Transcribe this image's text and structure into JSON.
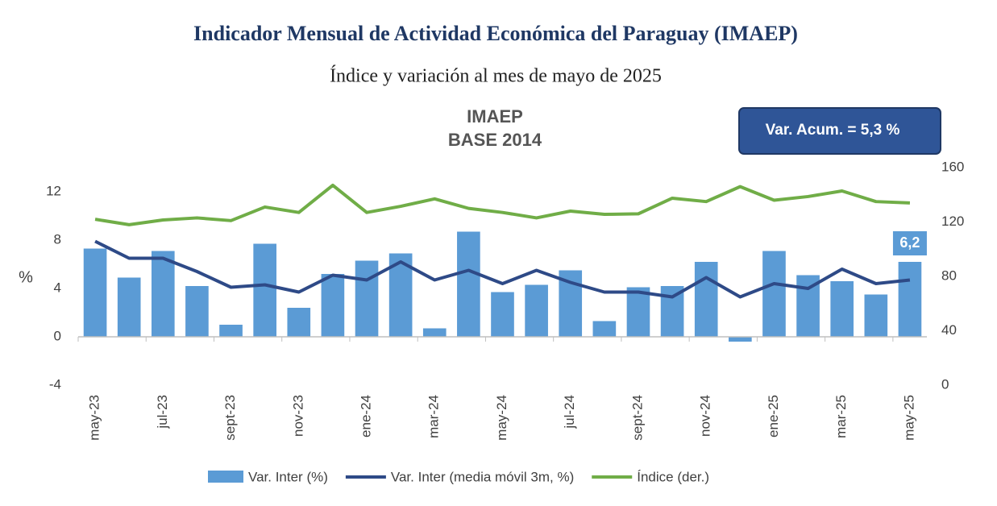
{
  "chart_data": {
    "type": "bar_line",
    "title": "Indicador Mensual de Actividad Económica del Paraguay (IMAEP)",
    "subtitle": "Índice y variación al mes de mayo de 2025",
    "inner_title": [
      "IMAEP",
      "BASE 2014"
    ],
    "annotation": "Var. Acum. =  5,3 %",
    "y_label": "%",
    "categories": [
      "may-23",
      null,
      "jul-23",
      null,
      "sept-23",
      null,
      "nov-23",
      null,
      "ene-24",
      null,
      "mar-24",
      null,
      "may-24",
      null,
      "jul-24",
      null,
      "sept-24",
      null,
      "nov-24",
      null,
      "ene-25",
      null,
      "mar-25",
      null,
      "may-25"
    ],
    "ylim": [
      -4,
      12
    ],
    "yticks": [
      -4,
      0,
      4,
      8,
      12
    ],
    "y2lim": [
      0,
      160
    ],
    "y2ticks": [
      0,
      40,
      80,
      120,
      160
    ],
    "series": [
      {
        "name": "Var. Inter (%)",
        "kind": "bar",
        "color": "#5b9bd5",
        "values": [
          7.3,
          4.9,
          7.1,
          4.2,
          1.0,
          7.7,
          2.4,
          5.2,
          6.3,
          6.9,
          0.7,
          8.7,
          3.7,
          4.3,
          5.5,
          1.3,
          4.1,
          4.2,
          6.2,
          -0.4,
          7.1,
          5.1,
          4.6,
          3.5,
          6.2
        ],
        "value_labels": [
          null,
          null,
          null,
          null,
          null,
          null,
          null,
          null,
          null,
          null,
          null,
          null,
          null,
          null,
          null,
          null,
          null,
          null,
          null,
          null,
          null,
          null,
          null,
          null,
          "6,2"
        ]
      },
      {
        "name": "Var. Inter (media móvil 3m, %)",
        "kind": "line",
        "color": "#2e4a87",
        "values": [
          7.9,
          6.5,
          6.5,
          5.4,
          4.1,
          4.3,
          3.7,
          5.1,
          4.7,
          6.2,
          4.7,
          5.5,
          4.4,
          5.5,
          4.5,
          3.7,
          3.7,
          3.3,
          4.9,
          3.3,
          4.4,
          4.0,
          5.6,
          4.4,
          4.7
        ]
      },
      {
        "name": "Índice (der.)",
        "kind": "line",
        "axis": "y2",
        "color": "#70ad47",
        "values": [
          122,
          118,
          121.5,
          123,
          121,
          131,
          127,
          147,
          127,
          131.5,
          137,
          130,
          127,
          123,
          128,
          125.6,
          126,
          137.5,
          135,
          146,
          136,
          138.7,
          142.8,
          135,
          134
        ]
      }
    ]
  }
}
